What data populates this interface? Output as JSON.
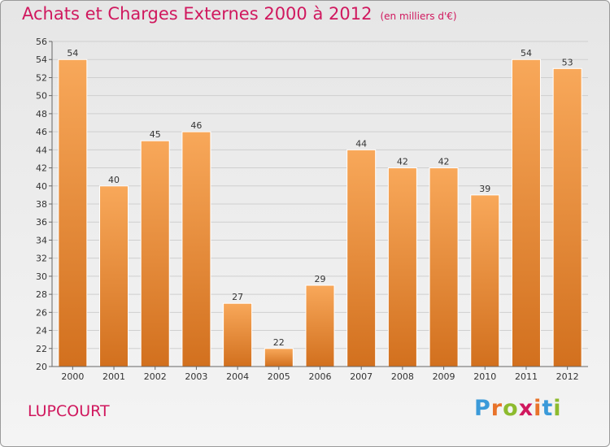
{
  "title": "Achats et Charges Externes 2000 à 2012",
  "subtitle": "(en milliers d'€)",
  "commune": "LUPCOURT",
  "logo": {
    "text": "Proxiti",
    "letters": [
      "P",
      "r",
      "o",
      "x",
      "i",
      "t",
      "i"
    ]
  },
  "colors": {
    "title": "#d0185e",
    "bar_light": "#f8a85a",
    "bar_dark": "#d2701e",
    "grid": "#cfcfcf",
    "axis": "#666666"
  },
  "chart_data": {
    "type": "bar",
    "categories": [
      "2000",
      "2001",
      "2002",
      "2003",
      "2004",
      "2005",
      "2006",
      "2007",
      "2008",
      "2009",
      "2010",
      "2011",
      "2012"
    ],
    "values": [
      54,
      40,
      45,
      46,
      27,
      22,
      29,
      44,
      42,
      42,
      39,
      54,
      53
    ],
    "ylim": [
      20,
      56
    ],
    "ytick_step": 2,
    "grid": true,
    "xlabel": "",
    "ylabel": ""
  }
}
